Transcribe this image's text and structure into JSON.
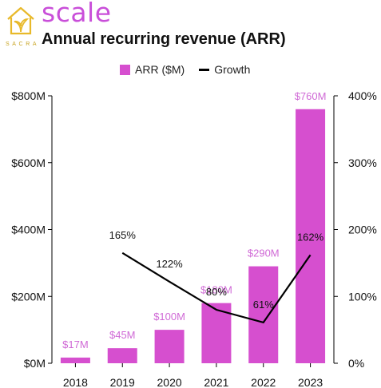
{
  "brand": {
    "name": "scale",
    "sub": "SACRA"
  },
  "chart_data": {
    "type": "bar",
    "title": "Annual recurring revenue (ARR)",
    "categories": [
      "2018",
      "2019",
      "2020",
      "2021",
      "2022",
      "2023"
    ],
    "series": [
      {
        "name": "ARR ($M)",
        "type": "bar",
        "values": [
          17,
          45,
          100,
          180,
          290,
          760
        ],
        "labels": [
          "$17M",
          "$45M",
          "$100M",
          "$180M",
          "$290M",
          "$760M"
        ]
      },
      {
        "name": "Growth",
        "type": "line",
        "axis": "right",
        "values": [
          null,
          165,
          122,
          80,
          61,
          162
        ],
        "labels": [
          "",
          "165%",
          "122%",
          "80%",
          "61%",
          "162%"
        ]
      }
    ],
    "ylim": [
      0,
      800
    ],
    "y_ticks": [
      0,
      200,
      400,
      600,
      800
    ],
    "y_tick_labels": [
      "$0M",
      "$200M",
      "$400M",
      "$600M",
      "$800M"
    ],
    "y2lim": [
      0,
      400
    ],
    "y2_ticks": [
      0,
      100,
      200,
      300,
      400
    ],
    "y2_tick_labels": [
      "0%",
      "100%",
      "200%",
      "300%",
      "400%"
    ],
    "legend": "top-center",
    "grid": false,
    "colors": {
      "bar": "#d64fcf",
      "bar_label": "#d06ad6",
      "line": "#000000",
      "brand": "#c94fd9",
      "brand_accent": "#e8b92a"
    }
  }
}
